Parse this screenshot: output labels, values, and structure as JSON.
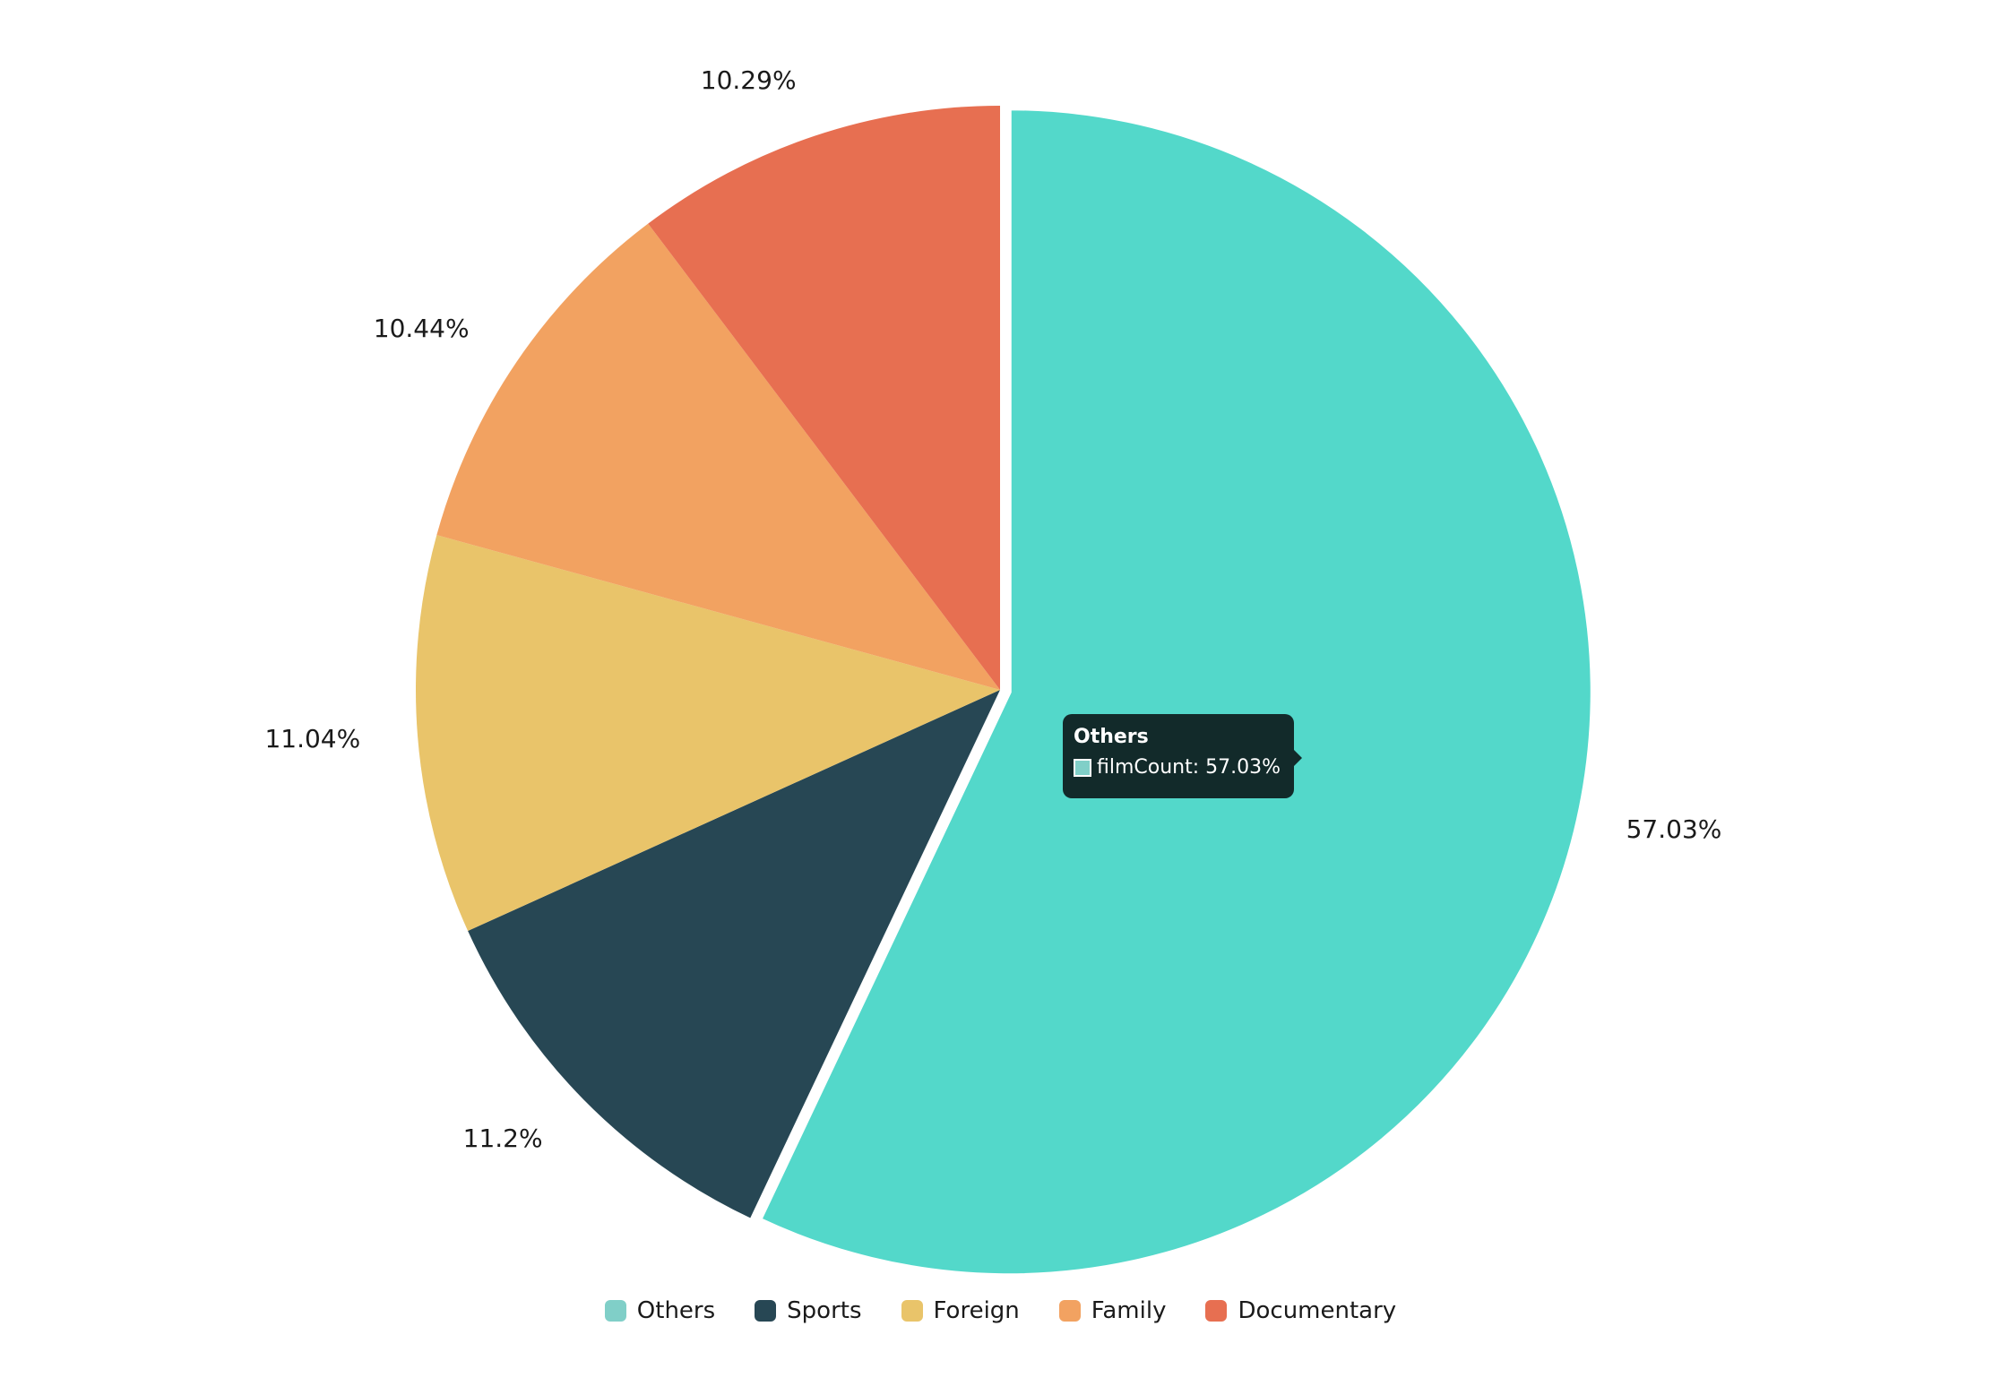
{
  "chart_data": {
    "type": "pie",
    "slices": [
      {
        "name": "Others",
        "value": 57.03,
        "label": "57.03%",
        "color": "#53d8ca",
        "exploded": true
      },
      {
        "name": "Sports",
        "value": 11.2,
        "label": "11.2%",
        "color": "#274754",
        "exploded": false
      },
      {
        "name": "Foreign",
        "value": 11.04,
        "label": "11.04%",
        "color": "#e9c46a",
        "exploded": false
      },
      {
        "name": "Family",
        "value": 10.44,
        "label": "10.44%",
        "color": "#f2a261",
        "exploded": false
      },
      {
        "name": "Documentary",
        "value": 10.29,
        "label": "10.29%",
        "color": "#e76f51",
        "exploded": false
      }
    ],
    "legend": {
      "position": "bottom",
      "items": [
        {
          "label": "Others",
          "color": "#80cfc8"
        },
        {
          "label": "Sports",
          "color": "#274754"
        },
        {
          "label": "Foreign",
          "color": "#e9c46a"
        },
        {
          "label": "Family",
          "color": "#f2a261"
        },
        {
          "label": "Documentary",
          "color": "#e76f51"
        }
      ]
    },
    "tooltip": {
      "title": "Others",
      "text": "filmCount: 57.03%",
      "swatch_color": "#80cfc8",
      "background": "#122a2a"
    }
  }
}
